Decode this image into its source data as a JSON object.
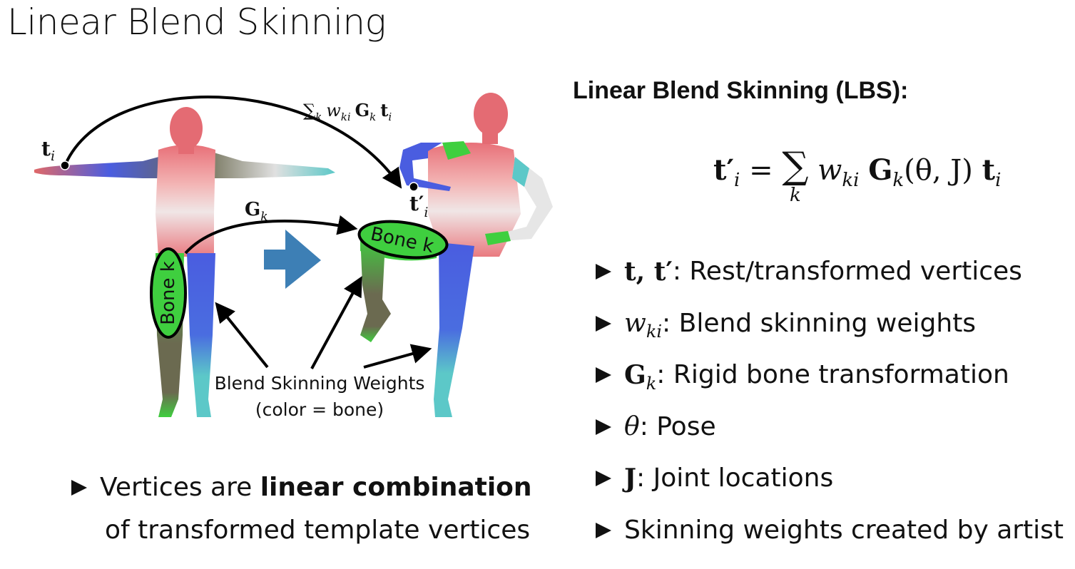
{
  "title": "Linear Blend Skinning",
  "figure": {
    "ti_label": "t",
    "ti_sub": "i",
    "ti_prime_label": "t′",
    "ti_prime_sub": "i",
    "sum_label": "∑",
    "sum_sub": "k",
    "sum_w": "w",
    "sum_w_sub": "ki",
    "sum_G": "G",
    "sum_G_sub": "k",
    "sum_t": "t",
    "sum_t_sub": "i",
    "gk_label": "G",
    "gk_sub": "k",
    "bone_left": "Bone k",
    "bone_right": "Bone k",
    "weights_caption_line1": "Blend Skinning Weights",
    "weights_caption_line2": "(color = bone)"
  },
  "lbs": {
    "heading": "Linear Blend Skinning (LBS):",
    "eq_lhs": "t′",
    "eq_lhs_sub": "i",
    "eq_equals": "=",
    "eq_sum": "∑",
    "eq_sum_sub": "k",
    "eq_w": "w",
    "eq_w_sub": "ki",
    "eq_G": "G",
    "eq_G_sub": "k",
    "eq_args": "(θ, J)",
    "eq_t": "t",
    "eq_t_sub": "i"
  },
  "bullets": [
    {
      "symbol": "t, t′",
      "text": ": Rest/transformed vertices"
    },
    {
      "symbol": "w",
      "symbol_sub": "ki",
      "text": ": Blend skinning weights"
    },
    {
      "symbol": "G",
      "symbol_sub": "k",
      "text": ": Rigid bone transformation"
    },
    {
      "symbol": "θ",
      "text": ": Pose"
    },
    {
      "symbol": "J",
      "text": ": Joint locations"
    },
    {
      "symbol": "",
      "text": "Skinning weights created by artist"
    }
  ],
  "bottom_note": {
    "prefix": "Vertices are ",
    "bold": "linear combination",
    "line2": "of transformed template vertices"
  },
  "colors": {
    "arrow": "#3d7fb5",
    "bone_green": "#3fcf3f",
    "head_red": "#e8707a",
    "limb_blue": "#4a5de0",
    "limb_teal": "#5cc8c8",
    "limb_olive": "#6b6a50"
  }
}
